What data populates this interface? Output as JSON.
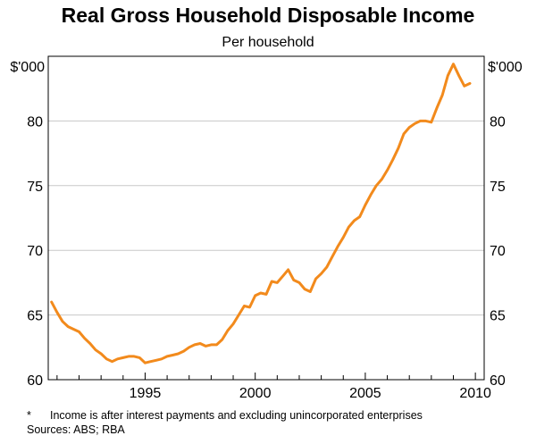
{
  "chart_data": {
    "type": "line",
    "title": "Real Gross Household Disposable Income",
    "subtitle": "Per household",
    "unit_left": "$'000",
    "unit_right": "$'000",
    "xlabel": "",
    "ylabel": "",
    "xlim": [
      1990.6,
      2010.4
    ],
    "ylim": [
      60,
      85
    ],
    "yticks": [
      60,
      65,
      70,
      75,
      80
    ],
    "xticks": [
      1995,
      2000,
      2005,
      2010
    ],
    "grid": "horizontal",
    "line_color": "#f28a1c",
    "series": [
      {
        "x": [
          1990.75,
          1991.0,
          1991.25,
          1991.5,
          1991.75,
          1992.0,
          1992.25,
          1992.5,
          1992.75,
          1993.0,
          1993.25,
          1993.5,
          1993.75,
          1994.0,
          1994.25,
          1994.5,
          1994.75,
          1995.0,
          1995.25,
          1995.5,
          1995.75,
          1996.0,
          1996.25,
          1996.5,
          1996.75,
          1997.0,
          1997.25,
          1997.5,
          1997.75,
          1998.0,
          1998.25,
          1998.5,
          1998.75,
          1999.0,
          1999.25,
          1999.5,
          1999.75,
          2000.0,
          2000.25,
          2000.5,
          2000.75,
          2001.0,
          2001.25,
          2001.5,
          2001.75,
          2002.0,
          2002.25,
          2002.5,
          2002.75,
          2003.0,
          2003.25,
          2003.5,
          2003.75,
          2004.0,
          2004.25,
          2004.5,
          2004.75,
          2005.0,
          2005.25,
          2005.5,
          2005.75,
          2006.0,
          2006.25,
          2006.5,
          2006.75,
          2007.0,
          2007.25,
          2007.5,
          2007.75,
          2008.0,
          2008.25,
          2008.5,
          2008.75,
          2009.0,
          2009.25,
          2009.5,
          2009.75
        ],
        "values": [
          66.0,
          65.2,
          64.5,
          64.1,
          63.9,
          63.7,
          63.2,
          62.8,
          62.3,
          62.0,
          61.6,
          61.4,
          61.6,
          61.7,
          61.8,
          61.8,
          61.7,
          61.3,
          61.4,
          61.5,
          61.6,
          61.8,
          61.9,
          62.0,
          62.2,
          62.5,
          62.7,
          62.8,
          62.6,
          62.7,
          62.7,
          63.1,
          63.8,
          64.3,
          65.0,
          65.7,
          65.6,
          66.5,
          66.7,
          66.6,
          67.6,
          67.5,
          68.0,
          68.5,
          67.7,
          67.5,
          67.0,
          66.8,
          67.8,
          68.2,
          68.7,
          69.5,
          70.3,
          71.0,
          71.8,
          72.3,
          72.6,
          73.5,
          74.3,
          75.0,
          75.5,
          76.2,
          77.0,
          77.9,
          79.0,
          79.5,
          79.8,
          80.0,
          80.0,
          79.9,
          81.0,
          82.0,
          83.5,
          84.4,
          83.5,
          82.7,
          82.9
        ]
      }
    ]
  },
  "footnote": {
    "marker": "*",
    "text": "Income is after interest payments and excluding unincorporated enterprises"
  },
  "sources": "Sources: ABS; RBA"
}
